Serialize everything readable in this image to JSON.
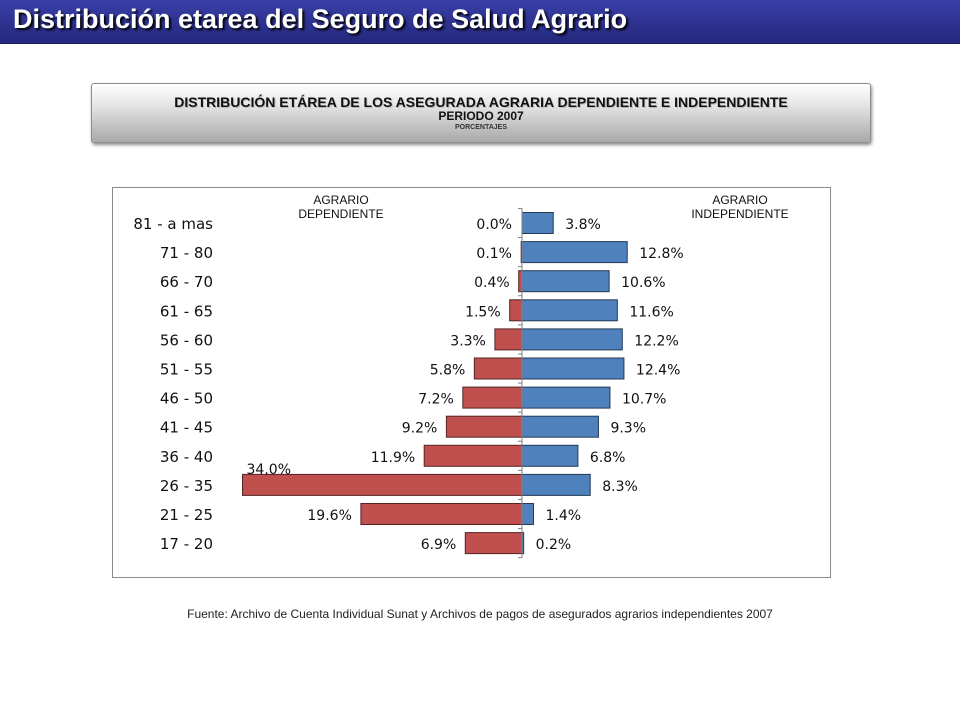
{
  "page": {
    "title": "Distribución etarea del Seguro de Salud Agrario",
    "banner_line1": "DISTRIBUCIÓN ETÁREA DE LOS ASEGURADA AGRARIA DEPENDIENTE E INDEPENDIENTE",
    "banner_line2": "PERIODO 2007",
    "banner_line3": "PORCENTAJES",
    "left_caption_line1": "AGRARIO",
    "left_caption_line2": "DEPENDIENTE",
    "right_caption_line1": "AGRARIO",
    "right_caption_line2": "INDEPENDIENTE",
    "source": "Fuente: Archivo de Cuenta Individual Sunat y Archivos de pagos de asegurados agrarios independientes 2007"
  },
  "chart_data": {
    "type": "bar",
    "orientation": "horizontal",
    "layout": "population-pyramid",
    "title": "",
    "categories": [
      "81 - a mas",
      "71 - 80",
      "66 - 70",
      "61 - 65",
      "56 - 60",
      "51 - 55",
      "46 - 50",
      "41 - 45",
      "36 - 40",
      "26 - 35",
      "21 - 25",
      "17 - 20"
    ],
    "series": [
      {
        "name": "AGRARIO DEPENDIENTE",
        "side": "left",
        "color": "#c0504d",
        "values": [
          0.0,
          0.1,
          0.4,
          1.5,
          3.3,
          5.8,
          7.2,
          9.2,
          11.9,
          34.0,
          19.6,
          6.9
        ],
        "labels": [
          "0.0%",
          "0.1%",
          "0.4%",
          "1.5%",
          "3.3%",
          "5.8%",
          "7.2%",
          "9.2%",
          "11.9%",
          "34.0%",
          "19.6%",
          "6.9%"
        ]
      },
      {
        "name": "AGRARIO INDEPENDIENTE",
        "side": "right",
        "color": "#4f81bd",
        "values": [
          3.8,
          12.8,
          10.6,
          11.6,
          12.2,
          12.4,
          10.7,
          9.3,
          6.8,
          8.3,
          1.4,
          0.2
        ],
        "labels": [
          "3.8%",
          "12.8%",
          "10.6%",
          "11.6%",
          "12.2%",
          "12.4%",
          "10.7%",
          "9.3%",
          "6.8%",
          "8.3%",
          "1.4%",
          "0.2%"
        ]
      }
    ],
    "unit": "%",
    "grid": false
  }
}
